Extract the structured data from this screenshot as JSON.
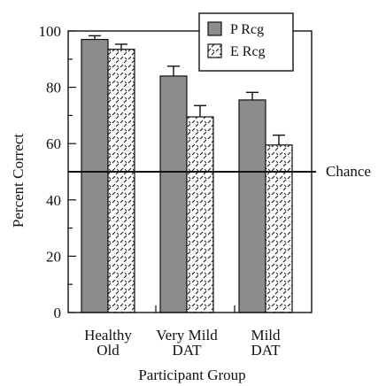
{
  "chart_data": {
    "type": "bar",
    "categories": [
      [
        "Healthy",
        "Old"
      ],
      [
        "Very Mild",
        "DAT"
      ],
      [
        "Mild",
        "DAT"
      ]
    ],
    "series": [
      {
        "name": "P Rcg",
        "values": [
          97,
          84,
          75.5
        ],
        "errors": [
          1.3,
          3.5,
          2.7
        ],
        "fill": "solid",
        "color": "#8c8c8c"
      },
      {
        "name": "E Rcg",
        "values": [
          93.5,
          69.5,
          59.5
        ],
        "errors": [
          1.8,
          4.0,
          3.5
        ],
        "fill": "hatched",
        "color": "#ffffff"
      }
    ],
    "ylabel": "Percent Correct",
    "xlabel": "Participant Group",
    "ylim": [
      0,
      100
    ],
    "yticks": [
      0,
      20,
      40,
      60,
      80,
      100
    ],
    "reference_line": {
      "value": 50,
      "label": "Chance"
    },
    "legend_position": "top-right",
    "grid": false
  }
}
